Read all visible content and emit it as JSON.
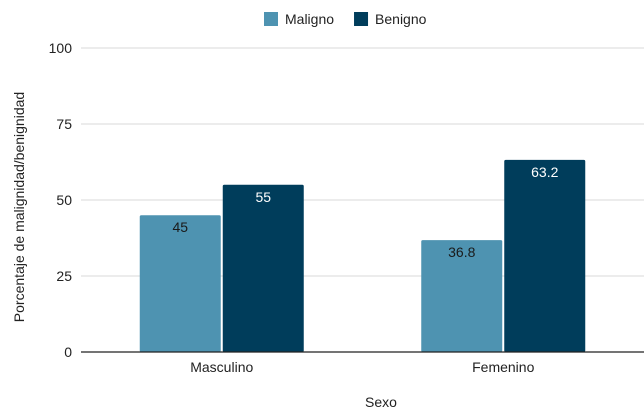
{
  "chart_data": {
    "type": "bar",
    "title": "",
    "xlabel": "Sexo",
    "ylabel": "Porcentaje de malignidad/benignidad",
    "categories": [
      "Masculino",
      "Femenino"
    ],
    "series": [
      {
        "name": "Maligno",
        "values": [
          45,
          36.8
        ],
        "color": "#4e93b1",
        "labels": [
          "45",
          "36.8"
        ],
        "label_color": "#1a1a1a"
      },
      {
        "name": "Benigno",
        "values": [
          55,
          63.2
        ],
        "color": "#003d5b",
        "labels": [
          "55",
          "63.2"
        ],
        "label_color": "#ffffff"
      }
    ],
    "ylim": [
      0,
      100
    ],
    "yticks": [
      0,
      25,
      50,
      75,
      100
    ],
    "ytick_labels": [
      "0",
      "25",
      "50",
      "75",
      "100"
    ],
    "grid": true,
    "legend_position": "top-center",
    "colors": {
      "grid": "#d9d9d9",
      "axis": "#222222",
      "text": "#222222"
    }
  }
}
